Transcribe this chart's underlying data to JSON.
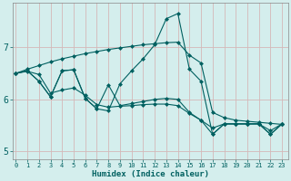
{
  "xlabel": "Humidex (Indice chaleur)",
  "bg_color": "#d4eeed",
  "grid_color": "#d4b8b8",
  "line_color": "#006060",
  "ylim": [
    4.85,
    7.85
  ],
  "yticks": [
    5,
    6,
    7
  ],
  "xticks": [
    0,
    1,
    2,
    3,
    4,
    5,
    6,
    7,
    8,
    9,
    10,
    11,
    12,
    13,
    14,
    15,
    16,
    17,
    18,
    19,
    20,
    21,
    22,
    23
  ],
  "xlim": [
    -0.3,
    23.5
  ],
  "y_peak": [
    6.5,
    6.55,
    6.35,
    6.05,
    6.55,
    6.57,
    6.02,
    5.82,
    5.78,
    6.3,
    6.55,
    6.78,
    7.05,
    7.55,
    7.65,
    6.58,
    6.35,
    5.33,
    5.53,
    5.53,
    5.53,
    5.53,
    5.33,
    5.53
  ],
  "y_trend": [
    6.5,
    6.58,
    6.65,
    6.72,
    6.78,
    6.83,
    6.88,
    6.92,
    6.96,
    6.99,
    7.02,
    7.05,
    7.07,
    7.09,
    7.1,
    6.85,
    6.7,
    5.75,
    5.65,
    5.6,
    5.58,
    5.56,
    5.54,
    5.52
  ],
  "y_zigzag": [
    6.5,
    6.55,
    6.35,
    6.05,
    6.55,
    6.57,
    6.02,
    5.82,
    6.28,
    5.88,
    5.92,
    5.96,
    6.0,
    6.02,
    6.0,
    5.75,
    5.6,
    5.33,
    5.53,
    5.53,
    5.53,
    5.53,
    5.33,
    5.53
  ],
  "y_smooth": [
    6.5,
    6.54,
    6.48,
    6.12,
    6.18,
    6.22,
    6.08,
    5.9,
    5.85,
    5.87,
    5.88,
    5.9,
    5.91,
    5.91,
    5.88,
    5.73,
    5.6,
    5.45,
    5.53,
    5.53,
    5.53,
    5.53,
    5.4,
    5.53
  ]
}
